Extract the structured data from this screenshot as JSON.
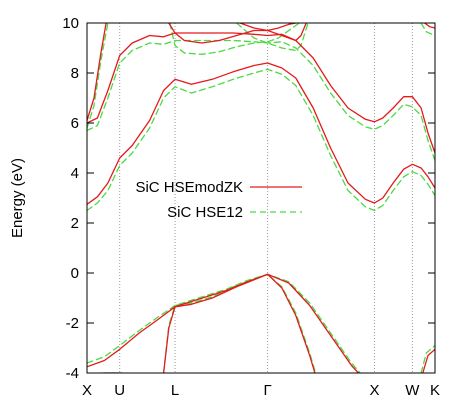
{
  "chart_data": {
    "type": "line",
    "title": "",
    "xlabel": "",
    "ylabel": "Energy (eV)",
    "ylim": [
      -4,
      10
    ],
    "yticks": [
      -4,
      -2,
      0,
      2,
      4,
      6,
      8,
      10
    ],
    "ytick_labels": [
      "-4",
      "-2",
      "0",
      "2",
      "4",
      "6",
      "8",
      "10"
    ],
    "xlim": [
      0,
      1
    ],
    "kpoints": [
      {
        "label": "X",
        "x": 0.0
      },
      {
        "label": "U",
        "x": 0.094
      },
      {
        "label": "L",
        "x": 0.253
      },
      {
        "label": "Γ",
        "x": 0.519
      },
      {
        "label": "X",
        "x": 0.826
      },
      {
        "label": "W",
        "x": 0.935
      },
      {
        "label": "K",
        "x": 1.0
      }
    ],
    "grid": false,
    "legend_placement": "center-left",
    "series": [
      {
        "name": "SiC HSEmodZK",
        "color": "#e41a1c",
        "style": "solid",
        "bands": [
          [
            [
              0.0,
              2.75
            ],
            [
              0.03,
              3.05
            ],
            [
              0.06,
              3.6
            ],
            [
              0.094,
              4.6
            ],
            [
              0.13,
              5.1
            ],
            [
              0.18,
              6.1
            ],
            [
              0.22,
              7.3
            ],
            [
              0.253,
              7.75
            ],
            [
              0.3,
              7.55
            ],
            [
              0.36,
              7.75
            ],
            [
              0.42,
              8.05
            ],
            [
              0.48,
              8.3
            ],
            [
              0.519,
              8.4
            ],
            [
              0.56,
              8.2
            ],
            [
              0.6,
              7.8
            ],
            [
              0.65,
              6.6
            ],
            [
              0.7,
              5.0
            ],
            [
              0.75,
              3.6
            ],
            [
              0.8,
              2.95
            ],
            [
              0.826,
              2.8
            ],
            [
              0.85,
              3.0
            ],
            [
              0.88,
              3.6
            ],
            [
              0.91,
              4.15
            ],
            [
              0.935,
              4.35
            ],
            [
              0.96,
              4.2
            ],
            [
              0.98,
              3.85
            ],
            [
              1.0,
              3.4
            ]
          ],
          [
            [
              0.0,
              6.0
            ],
            [
              0.03,
              6.2
            ],
            [
              0.06,
              7.3
            ],
            [
              0.094,
              8.7
            ],
            [
              0.13,
              9.2
            ],
            [
              0.18,
              9.5
            ],
            [
              0.22,
              9.45
            ],
            [
              0.253,
              9.6
            ],
            [
              0.3,
              9.6
            ],
            [
              0.36,
              9.6
            ],
            [
              0.42,
              9.6
            ],
            [
              0.48,
              9.55
            ],
            [
              0.519,
              9.5
            ],
            [
              0.56,
              9.55
            ],
            [
              0.6,
              9.3
            ],
            [
              0.65,
              8.6
            ],
            [
              0.7,
              7.5
            ],
            [
              0.75,
              6.6
            ],
            [
              0.8,
              6.15
            ],
            [
              0.826,
              6.05
            ],
            [
              0.85,
              6.2
            ],
            [
              0.88,
              6.6
            ],
            [
              0.91,
              7.05
            ],
            [
              0.935,
              7.05
            ],
            [
              0.96,
              6.6
            ],
            [
              0.98,
              5.6
            ],
            [
              1.0,
              4.8
            ]
          ],
          [
            [
              0.0,
              6.1
            ],
            [
              0.02,
              7.0
            ],
            [
              0.04,
              8.8
            ],
            [
              0.055,
              10.0
            ]
          ],
          [
            [
              0.235,
              10.0
            ],
            [
              0.253,
              9.6
            ],
            [
              0.28,
              9.3
            ],
            [
              0.33,
              9.2
            ],
            [
              0.38,
              9.3
            ],
            [
              0.43,
              9.5
            ],
            [
              0.48,
              9.7
            ],
            [
              0.519,
              9.7
            ],
            [
              0.55,
              9.8
            ],
            [
              0.58,
              9.95
            ],
            [
              0.6,
              10.0
            ]
          ],
          [
            [
              0.44,
              10.0
            ],
            [
              0.48,
              9.8
            ],
            [
              0.519,
              9.7
            ],
            [
              0.56,
              9.5
            ],
            [
              0.6,
              9.3
            ],
            [
              0.615,
              9.5
            ],
            [
              0.63,
              10.0
            ]
          ],
          [
            [
              0.97,
              10.0
            ],
            [
              0.985,
              9.85
            ],
            [
              1.0,
              9.8
            ]
          ],
          [
            [
              0.0,
              -3.75
            ],
            [
              0.05,
              -3.5
            ],
            [
              0.094,
              -3.05
            ],
            [
              0.15,
              -2.4
            ],
            [
              0.2,
              -1.9
            ],
            [
              0.253,
              -1.35
            ],
            [
              0.32,
              -1.05
            ],
            [
              0.4,
              -0.7
            ],
            [
              0.46,
              -0.35
            ],
            [
              0.519,
              -0.05
            ],
            [
              0.58,
              -0.4
            ],
            [
              0.64,
              -1.3
            ],
            [
              0.7,
              -2.5
            ],
            [
              0.76,
              -3.7
            ],
            [
              0.78,
              -4.0
            ]
          ],
          [
            [
              0.22,
              -4.0
            ],
            [
              0.235,
              -2.2
            ],
            [
              0.253,
              -1.35
            ],
            [
              0.3,
              -1.25
            ],
            [
              0.36,
              -1.0
            ],
            [
              0.43,
              -0.55
            ],
            [
              0.519,
              -0.05
            ],
            [
              0.56,
              -0.6
            ],
            [
              0.6,
              -1.7
            ],
            [
              0.64,
              -3.3
            ],
            [
              0.655,
              -4.0
            ]
          ],
          [
            [
              0.05,
              -4.0
            ],
            [
              0.1,
              -4.0
            ]
          ],
          [
            [
              0.965,
              -4.0
            ],
            [
              0.98,
              -3.3
            ],
            [
              1.0,
              -3.05
            ]
          ]
        ]
      },
      {
        "name": "SiC HSE12",
        "color": "#4dd944",
        "style": "dashed",
        "bands": [
          [
            [
              0.0,
              2.5
            ],
            [
              0.03,
              2.8
            ],
            [
              0.06,
              3.3
            ],
            [
              0.094,
              4.3
            ],
            [
              0.13,
              4.8
            ],
            [
              0.18,
              5.8
            ],
            [
              0.22,
              7.0
            ],
            [
              0.253,
              7.45
            ],
            [
              0.3,
              7.2
            ],
            [
              0.36,
              7.45
            ],
            [
              0.42,
              7.75
            ],
            [
              0.48,
              8.0
            ],
            [
              0.519,
              8.15
            ],
            [
              0.56,
              7.95
            ],
            [
              0.6,
              7.5
            ],
            [
              0.65,
              6.3
            ],
            [
              0.7,
              4.7
            ],
            [
              0.75,
              3.3
            ],
            [
              0.8,
              2.65
            ],
            [
              0.826,
              2.5
            ],
            [
              0.85,
              2.7
            ],
            [
              0.88,
              3.3
            ],
            [
              0.91,
              3.85
            ],
            [
              0.935,
              4.05
            ],
            [
              0.96,
              3.9
            ],
            [
              0.98,
              3.55
            ],
            [
              1.0,
              3.1
            ]
          ],
          [
            [
              0.0,
              5.7
            ],
            [
              0.03,
              5.9
            ],
            [
              0.06,
              7.0
            ],
            [
              0.094,
              8.4
            ],
            [
              0.13,
              8.9
            ],
            [
              0.18,
              9.2
            ],
            [
              0.22,
              9.15
            ],
            [
              0.253,
              9.3
            ],
            [
              0.3,
              9.3
            ],
            [
              0.36,
              9.3
            ],
            [
              0.42,
              9.3
            ],
            [
              0.48,
              9.25
            ],
            [
              0.519,
              9.2
            ],
            [
              0.56,
              9.25
            ],
            [
              0.6,
              9.0
            ],
            [
              0.65,
              8.3
            ],
            [
              0.7,
              7.2
            ],
            [
              0.75,
              6.3
            ],
            [
              0.8,
              5.85
            ],
            [
              0.826,
              5.75
            ],
            [
              0.85,
              5.9
            ],
            [
              0.88,
              6.3
            ],
            [
              0.91,
              6.75
            ],
            [
              0.935,
              6.65
            ],
            [
              0.96,
              6.3
            ],
            [
              0.98,
              5.3
            ],
            [
              1.0,
              4.5
            ]
          ],
          [
            [
              0.0,
              5.8
            ],
            [
              0.02,
              6.7
            ],
            [
              0.04,
              8.5
            ],
            [
              0.06,
              10.0
            ]
          ],
          [
            [
              0.238,
              10.0
            ],
            [
              0.253,
              9.1
            ],
            [
              0.28,
              8.8
            ],
            [
              0.33,
              8.75
            ],
            [
              0.38,
              8.85
            ],
            [
              0.43,
              9.05
            ],
            [
              0.48,
              9.2
            ],
            [
              0.519,
              9.25
            ],
            [
              0.55,
              9.4
            ],
            [
              0.58,
              9.7
            ],
            [
              0.61,
              10.0
            ]
          ],
          [
            [
              0.43,
              10.0
            ],
            [
              0.48,
              9.4
            ],
            [
              0.519,
              9.2
            ],
            [
              0.56,
              9.0
            ],
            [
              0.6,
              8.9
            ],
            [
              0.615,
              9.1
            ],
            [
              0.635,
              10.0
            ]
          ],
          [
            [
              0.96,
              10.0
            ],
            [
              0.975,
              9.65
            ],
            [
              1.0,
              9.5
            ]
          ],
          [
            [
              0.0,
              -3.6
            ],
            [
              0.05,
              -3.35
            ],
            [
              0.094,
              -2.9
            ],
            [
              0.15,
              -2.3
            ],
            [
              0.2,
              -1.8
            ],
            [
              0.253,
              -1.3
            ],
            [
              0.32,
              -1.0
            ],
            [
              0.4,
              -0.65
            ],
            [
              0.46,
              -0.3
            ],
            [
              0.519,
              -0.05
            ],
            [
              0.58,
              -0.35
            ],
            [
              0.64,
              -1.2
            ],
            [
              0.7,
              -2.4
            ],
            [
              0.76,
              -3.6
            ],
            [
              0.785,
              -4.0
            ]
          ],
          [
            [
              0.22,
              -4.0
            ],
            [
              0.235,
              -2.1
            ],
            [
              0.253,
              -1.3
            ],
            [
              0.3,
              -1.2
            ],
            [
              0.36,
              -0.95
            ],
            [
              0.43,
              -0.5
            ],
            [
              0.519,
              -0.05
            ],
            [
              0.56,
              -0.55
            ],
            [
              0.6,
              -1.6
            ],
            [
              0.64,
              -3.2
            ],
            [
              0.657,
              -4.0
            ]
          ],
          [
            [
              0.04,
              -4.0
            ],
            [
              0.1,
              -4.0
            ]
          ],
          [
            [
              0.96,
              -4.0
            ],
            [
              0.975,
              -3.2
            ],
            [
              1.0,
              -2.9
            ]
          ]
        ]
      }
    ]
  }
}
